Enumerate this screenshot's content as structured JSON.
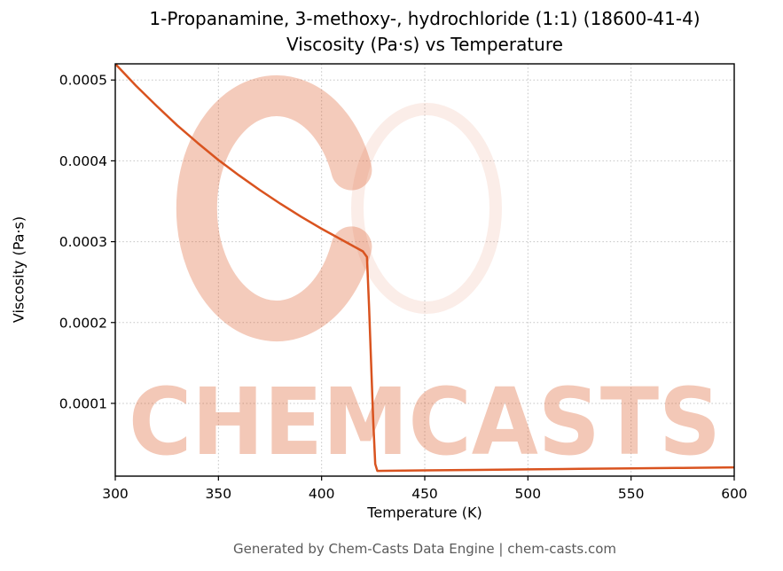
{
  "title": {
    "line1": "1-Propanamine, 3-methoxy-, hydrochloride (1:1) (18600-41-4)",
    "line2": "Viscosity (Pa·s) vs Temperature"
  },
  "footer": "Generated by Chem-Casts Data Engine | chem-casts.com",
  "watermark": {
    "text": "CHEMCASTS",
    "color": "#d9531f",
    "text_opacity": 0.32,
    "logo_opacity": 0.3
  },
  "chart_data": {
    "type": "line",
    "title": "1-Propanamine, 3-methoxy-, hydrochloride (1:1) (18600-41-4) — Viscosity (Pa·s) vs Temperature",
    "xlabel": "Temperature (K)",
    "ylabel": "Viscosity (Pa·s)",
    "xlim": [
      300,
      600
    ],
    "ylim": [
      1e-05,
      0.00052
    ],
    "xticks": [
      300,
      350,
      400,
      450,
      500,
      550,
      600
    ],
    "xtick_labels": [
      "300",
      "350",
      "400",
      "450",
      "500",
      "550",
      "600"
    ],
    "yticks": [
      0.0001,
      0.0002,
      0.0003,
      0.0004,
      0.0005
    ],
    "ytick_labels": [
      "0.0001",
      "0.0002",
      "0.0003",
      "0.0004",
      "0.0005"
    ],
    "grid": true,
    "legend": false,
    "line_color": "#d9531f",
    "line_width": 2.5,
    "series": [
      {
        "name": "viscosity",
        "x": [
          300,
          310,
          320,
          330,
          340,
          350,
          360,
          370,
          380,
          390,
          400,
          410,
          420,
          422,
          423,
          424,
          425,
          426,
          427,
          430,
          450,
          475,
          500,
          525,
          550,
          575,
          600
        ],
        "y": [
          0.00052,
          0.000493,
          0.000468,
          0.000444,
          0.000422,
          0.000401,
          0.000382,
          0.000364,
          0.000347,
          0.000331,
          0.000316,
          0.000302,
          0.000288,
          0.000281,
          0.00022,
          0.00015,
          8e-05,
          2.5e-05,
          1.65e-05,
          1.66e-05,
          1.71e-05,
          1.77e-05,
          1.84e-05,
          1.9e-05,
          1.96e-05,
          2.02e-05,
          2.08e-05
        ]
      }
    ]
  }
}
